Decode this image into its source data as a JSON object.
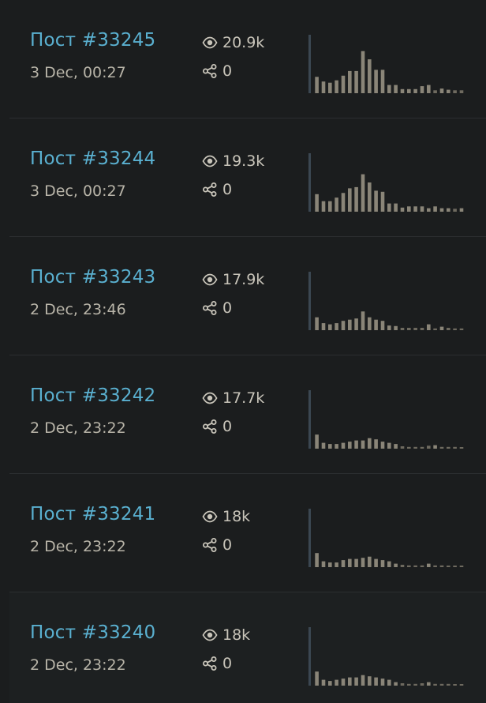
{
  "colors": {
    "link": "#5ab0d0",
    "bar": "#8a8578",
    "bar_base": "#6e6a5f",
    "first_bar": "#3b4752"
  },
  "posts": [
    {
      "title": "Пост #33245",
      "date": "3 Dec, 00:27",
      "views": "20.9k",
      "shares": "0",
      "sparkline": [
        1.0,
        0.28,
        0.2,
        0.18,
        0.22,
        0.3,
        0.38,
        0.38,
        0.72,
        0.58,
        0.4,
        0.4,
        0.14,
        0.14,
        0.07,
        0.07,
        0.07,
        0.12,
        0.14,
        0.05,
        0.08,
        0.06,
        0.05,
        0.05
      ]
    },
    {
      "title": "Пост #33244",
      "date": "3 Dec, 00:27",
      "views": "19.3k",
      "shares": "0",
      "sparkline": [
        1.0,
        0.3,
        0.18,
        0.18,
        0.24,
        0.32,
        0.4,
        0.42,
        0.64,
        0.5,
        0.36,
        0.34,
        0.14,
        0.14,
        0.07,
        0.09,
        0.09,
        0.09,
        0.06,
        0.09,
        0.06,
        0.06,
        0.05,
        0.06
      ]
    },
    {
      "title": "Пост #33243",
      "date": "2 Dec, 23:46",
      "views": "17.9k",
      "shares": "0",
      "sparkline": [
        1.0,
        0.22,
        0.12,
        0.1,
        0.12,
        0.16,
        0.18,
        0.2,
        0.32,
        0.22,
        0.18,
        0.16,
        0.08,
        0.07,
        0.04,
        0.04,
        0.04,
        0.04,
        0.1,
        0.03,
        0.06,
        0.04,
        0.03,
        0.03
      ]
    },
    {
      "title": "Пост #33242",
      "date": "2 Dec, 23:22",
      "views": "17.7k",
      "shares": "0",
      "sparkline": [
        1.0,
        0.24,
        0.1,
        0.08,
        0.08,
        0.1,
        0.12,
        0.14,
        0.14,
        0.18,
        0.16,
        0.12,
        0.1,
        0.08,
        0.04,
        0.03,
        0.03,
        0.03,
        0.05,
        0.06,
        0.03,
        0.03,
        0.03,
        0.02
      ]
    },
    {
      "title": "Пост #33241",
      "date": "2 Dec, 23:22",
      "views": "18k",
      "shares": "0",
      "sparkline": [
        1.0,
        0.24,
        0.1,
        0.08,
        0.08,
        0.12,
        0.14,
        0.14,
        0.16,
        0.18,
        0.14,
        0.12,
        0.1,
        0.06,
        0.04,
        0.03,
        0.03,
        0.03,
        0.06,
        0.03,
        0.03,
        0.02,
        0.02,
        0.02
      ]
    },
    {
      "title": "Пост #33240",
      "date": "2 Dec, 23:22",
      "views": "18k",
      "shares": "0",
      "sparkline": [
        1.0,
        0.24,
        0.1,
        0.08,
        0.1,
        0.12,
        0.14,
        0.14,
        0.18,
        0.16,
        0.14,
        0.12,
        0.1,
        0.06,
        0.04,
        0.03,
        0.03,
        0.04,
        0.06,
        0.03,
        0.03,
        0.03,
        0.02,
        0.02
      ]
    }
  ]
}
